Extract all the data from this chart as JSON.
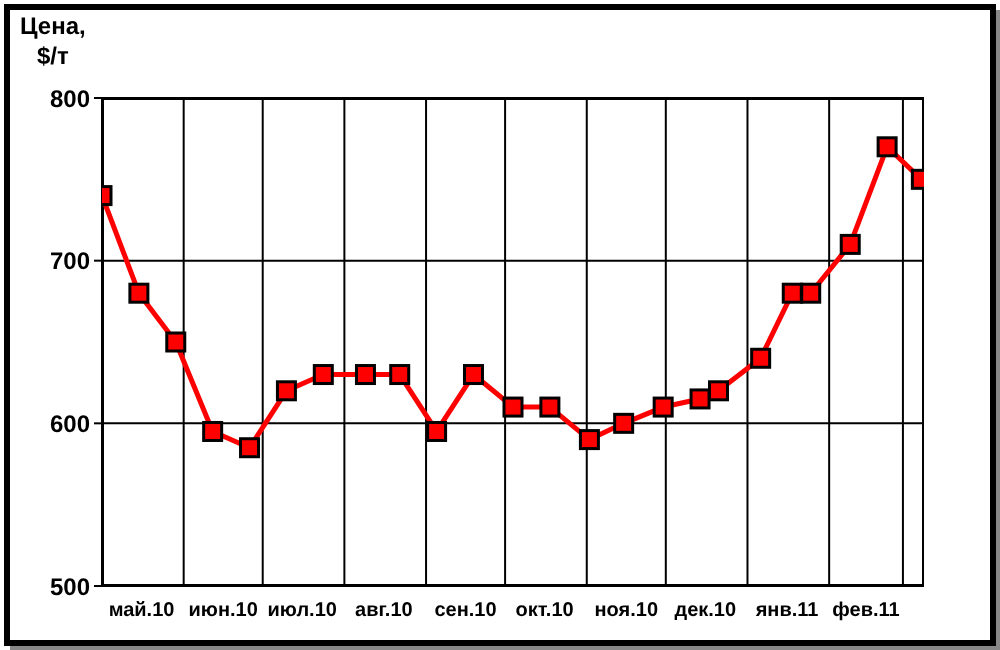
{
  "chart_data": {
    "type": "line",
    "ylabel": "Цена,\n$/т",
    "x": [
      "2010-05-01",
      "2010-05-15",
      "2010-05-29",
      "2010-06-12",
      "2010-06-26",
      "2010-07-10",
      "2010-07-24",
      "2010-08-09",
      "2010-08-22",
      "2010-09-05",
      "2010-09-19",
      "2010-10-04",
      "2010-10-18",
      "2010-11-02",
      "2010-11-15",
      "2010-11-30",
      "2010-12-14",
      "2010-12-21",
      "2011-01-06",
      "2011-01-18",
      "2011-01-25",
      "2011-02-09",
      "2011-02-23",
      "2011-03-08"
    ],
    "series": [
      {
        "color": "#ff0000",
        "values": [
          740,
          680,
          650,
          595,
          585,
          620,
          630,
          630,
          630,
          595,
          630,
          610,
          610,
          590,
          600,
          610,
          615,
          620,
          640,
          680,
          680,
          710,
          770,
          750
        ]
      }
    ],
    "xlim": [
      "2010-05-01",
      "2011-03-09"
    ],
    "xticks": [
      {
        "value": "2010-05-01",
        "label": null
      },
      {
        "value": "2010-05-16",
        "label": "май.10"
      },
      {
        "value": "2010-06-01",
        "label": null
      },
      {
        "value": "2010-06-16",
        "label": "июн.10"
      },
      {
        "value": "2010-07-01",
        "label": null
      },
      {
        "value": "2010-07-16",
        "label": "июл.10"
      },
      {
        "value": "2010-08-01",
        "label": null
      },
      {
        "value": "2010-08-16",
        "label": "авг.10"
      },
      {
        "value": "2010-09-01",
        "label": null
      },
      {
        "value": "2010-09-16",
        "label": "сен.10"
      },
      {
        "value": "2010-10-01",
        "label": null
      },
      {
        "value": "2010-10-16",
        "label": "окт.10"
      },
      {
        "value": "2010-11-01",
        "label": null
      },
      {
        "value": "2010-11-16",
        "label": "ноя.10"
      },
      {
        "value": "2010-12-01",
        "label": null
      },
      {
        "value": "2010-12-16",
        "label": "дек.10"
      },
      {
        "value": "2011-01-01",
        "label": null
      },
      {
        "value": "2011-01-16",
        "label": "янв.11"
      },
      {
        "value": "2011-02-01",
        "label": null
      },
      {
        "value": "2011-02-15",
        "label": "фев.11"
      },
      {
        "value": "2011-03-01",
        "label": null
      }
    ],
    "ylim": [
      500,
      800
    ],
    "yticks": [
      500,
      600,
      700,
      800
    ],
    "grid": true,
    "marker": "square",
    "line_style": "solid",
    "legend": false
  }
}
